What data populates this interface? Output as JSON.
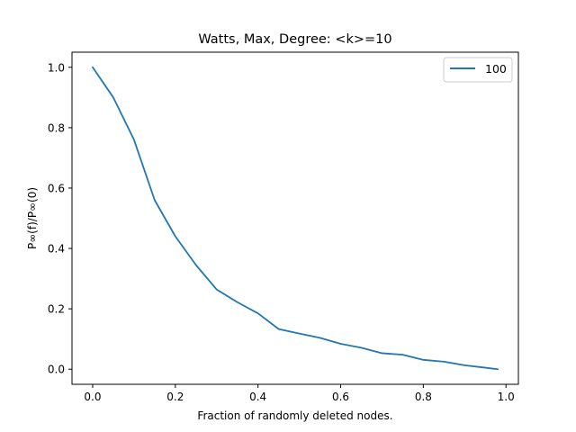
{
  "chart_data": {
    "type": "line",
    "title": "Watts, Max, Degree: <k>=10",
    "xlabel": "Fraction of randomly deleted nodes.",
    "ylabel": "P∞(f)/P∞(0)",
    "xlim": [
      -0.05,
      1.03
    ],
    "ylim": [
      -0.05,
      1.05
    ],
    "xticks": [
      0.0,
      0.2,
      0.4,
      0.6,
      0.8,
      1.0
    ],
    "xtick_labels": [
      "0.0",
      "0.2",
      "0.4",
      "0.6",
      "0.8",
      "1.0"
    ],
    "yticks": [
      0.0,
      0.2,
      0.4,
      0.6,
      0.8,
      1.0
    ],
    "ytick_labels": [
      "0.0",
      "0.2",
      "0.4",
      "0.6",
      "0.8",
      "1.0"
    ],
    "grid": false,
    "legend_position": "upper right",
    "series": [
      {
        "name": "100",
        "color": "#1f77b4",
        "x": [
          0.0,
          0.05,
          0.1,
          0.15,
          0.2,
          0.25,
          0.3,
          0.35,
          0.4,
          0.45,
          0.5,
          0.55,
          0.6,
          0.65,
          0.7,
          0.75,
          0.8,
          0.85,
          0.9,
          0.95,
          0.98
        ],
        "y": [
          1.0,
          0.9,
          0.76,
          0.56,
          0.44,
          0.345,
          0.264,
          0.222,
          0.185,
          0.133,
          0.118,
          0.104,
          0.084,
          0.071,
          0.053,
          0.048,
          0.031,
          0.025,
          0.013,
          0.005,
          0.0
        ]
      }
    ]
  }
}
